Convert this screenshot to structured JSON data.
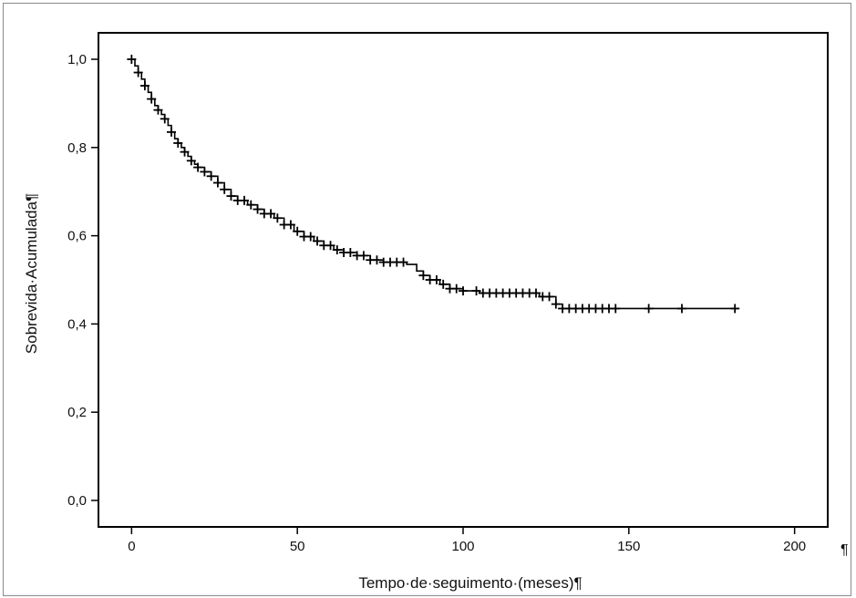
{
  "chart_data": {
    "type": "line",
    "title": "",
    "xlabel": "Tempo·de·seguimento·(meses)¶",
    "ylabel": "Sobrevida·Acumulada¶",
    "xlim": [
      -10,
      210
    ],
    "ylim": [
      -0.06,
      1.06
    ],
    "x_ticks": [
      0,
      50,
      100,
      150,
      200
    ],
    "x_tick_labels": [
      "0",
      "50",
      "100",
      "150",
      "200"
    ],
    "y_ticks": [
      0.0,
      0.2,
      0.4,
      0.6,
      0.8,
      1.0
    ],
    "y_tick_labels": [
      "0,0",
      "0,2",
      "0,4",
      "0,6",
      "0,8",
      "1,0"
    ],
    "grid": false,
    "stray_mark": "¶",
    "series": [
      {
        "style": "step",
        "color": "#000000",
        "points": [
          [
            0,
            1.0
          ],
          [
            1,
            0.985
          ],
          [
            2,
            0.97
          ],
          [
            3,
            0.955
          ],
          [
            4,
            0.94
          ],
          [
            5,
            0.925
          ],
          [
            6,
            0.91
          ],
          [
            7,
            0.895
          ],
          [
            8,
            0.885
          ],
          [
            9,
            0.875
          ],
          [
            10,
            0.865
          ],
          [
            11,
            0.85
          ],
          [
            12,
            0.835
          ],
          [
            13,
            0.82
          ],
          [
            14,
            0.81
          ],
          [
            15,
            0.8
          ],
          [
            16,
            0.79
          ],
          [
            17,
            0.78
          ],
          [
            18,
            0.77
          ],
          [
            19,
            0.762
          ],
          [
            20,
            0.755
          ],
          [
            22,
            0.745
          ],
          [
            24,
            0.735
          ],
          [
            26,
            0.72
          ],
          [
            28,
            0.705
          ],
          [
            30,
            0.69
          ],
          [
            32,
            0.68
          ],
          [
            35,
            0.67
          ],
          [
            38,
            0.66
          ],
          [
            40,
            0.65
          ],
          [
            43,
            0.64
          ],
          [
            46,
            0.625
          ],
          [
            49,
            0.61
          ],
          [
            52,
            0.598
          ],
          [
            55,
            0.588
          ],
          [
            58,
            0.578
          ],
          [
            61,
            0.568
          ],
          [
            64,
            0.562
          ],
          [
            68,
            0.555
          ],
          [
            72,
            0.545
          ],
          [
            76,
            0.54
          ],
          [
            83,
            0.535
          ],
          [
            86,
            0.52
          ],
          [
            88,
            0.51
          ],
          [
            90,
            0.5
          ],
          [
            93,
            0.49
          ],
          [
            96,
            0.48
          ],
          [
            100,
            0.475
          ],
          [
            105,
            0.47
          ],
          [
            115,
            0.47
          ],
          [
            123,
            0.462
          ],
          [
            128,
            0.445
          ],
          [
            130,
            0.435
          ],
          [
            183,
            0.435
          ]
        ],
        "censored": [
          0,
          2,
          4,
          6,
          8,
          10,
          12,
          14,
          16,
          18,
          20,
          22,
          24,
          26,
          28,
          30,
          32,
          34,
          36,
          38,
          40,
          42,
          44,
          46,
          48,
          50,
          52,
          54,
          56,
          58,
          60,
          62,
          64,
          66,
          68,
          70,
          72,
          74,
          76,
          78,
          80,
          82,
          88,
          90,
          92,
          94,
          96,
          98,
          100,
          104,
          106,
          108,
          110,
          112,
          114,
          116,
          118,
          120,
          122,
          124,
          126,
          128,
          130,
          132,
          134,
          136,
          138,
          140,
          142,
          144,
          146,
          156,
          166,
          182
        ]
      }
    ]
  }
}
